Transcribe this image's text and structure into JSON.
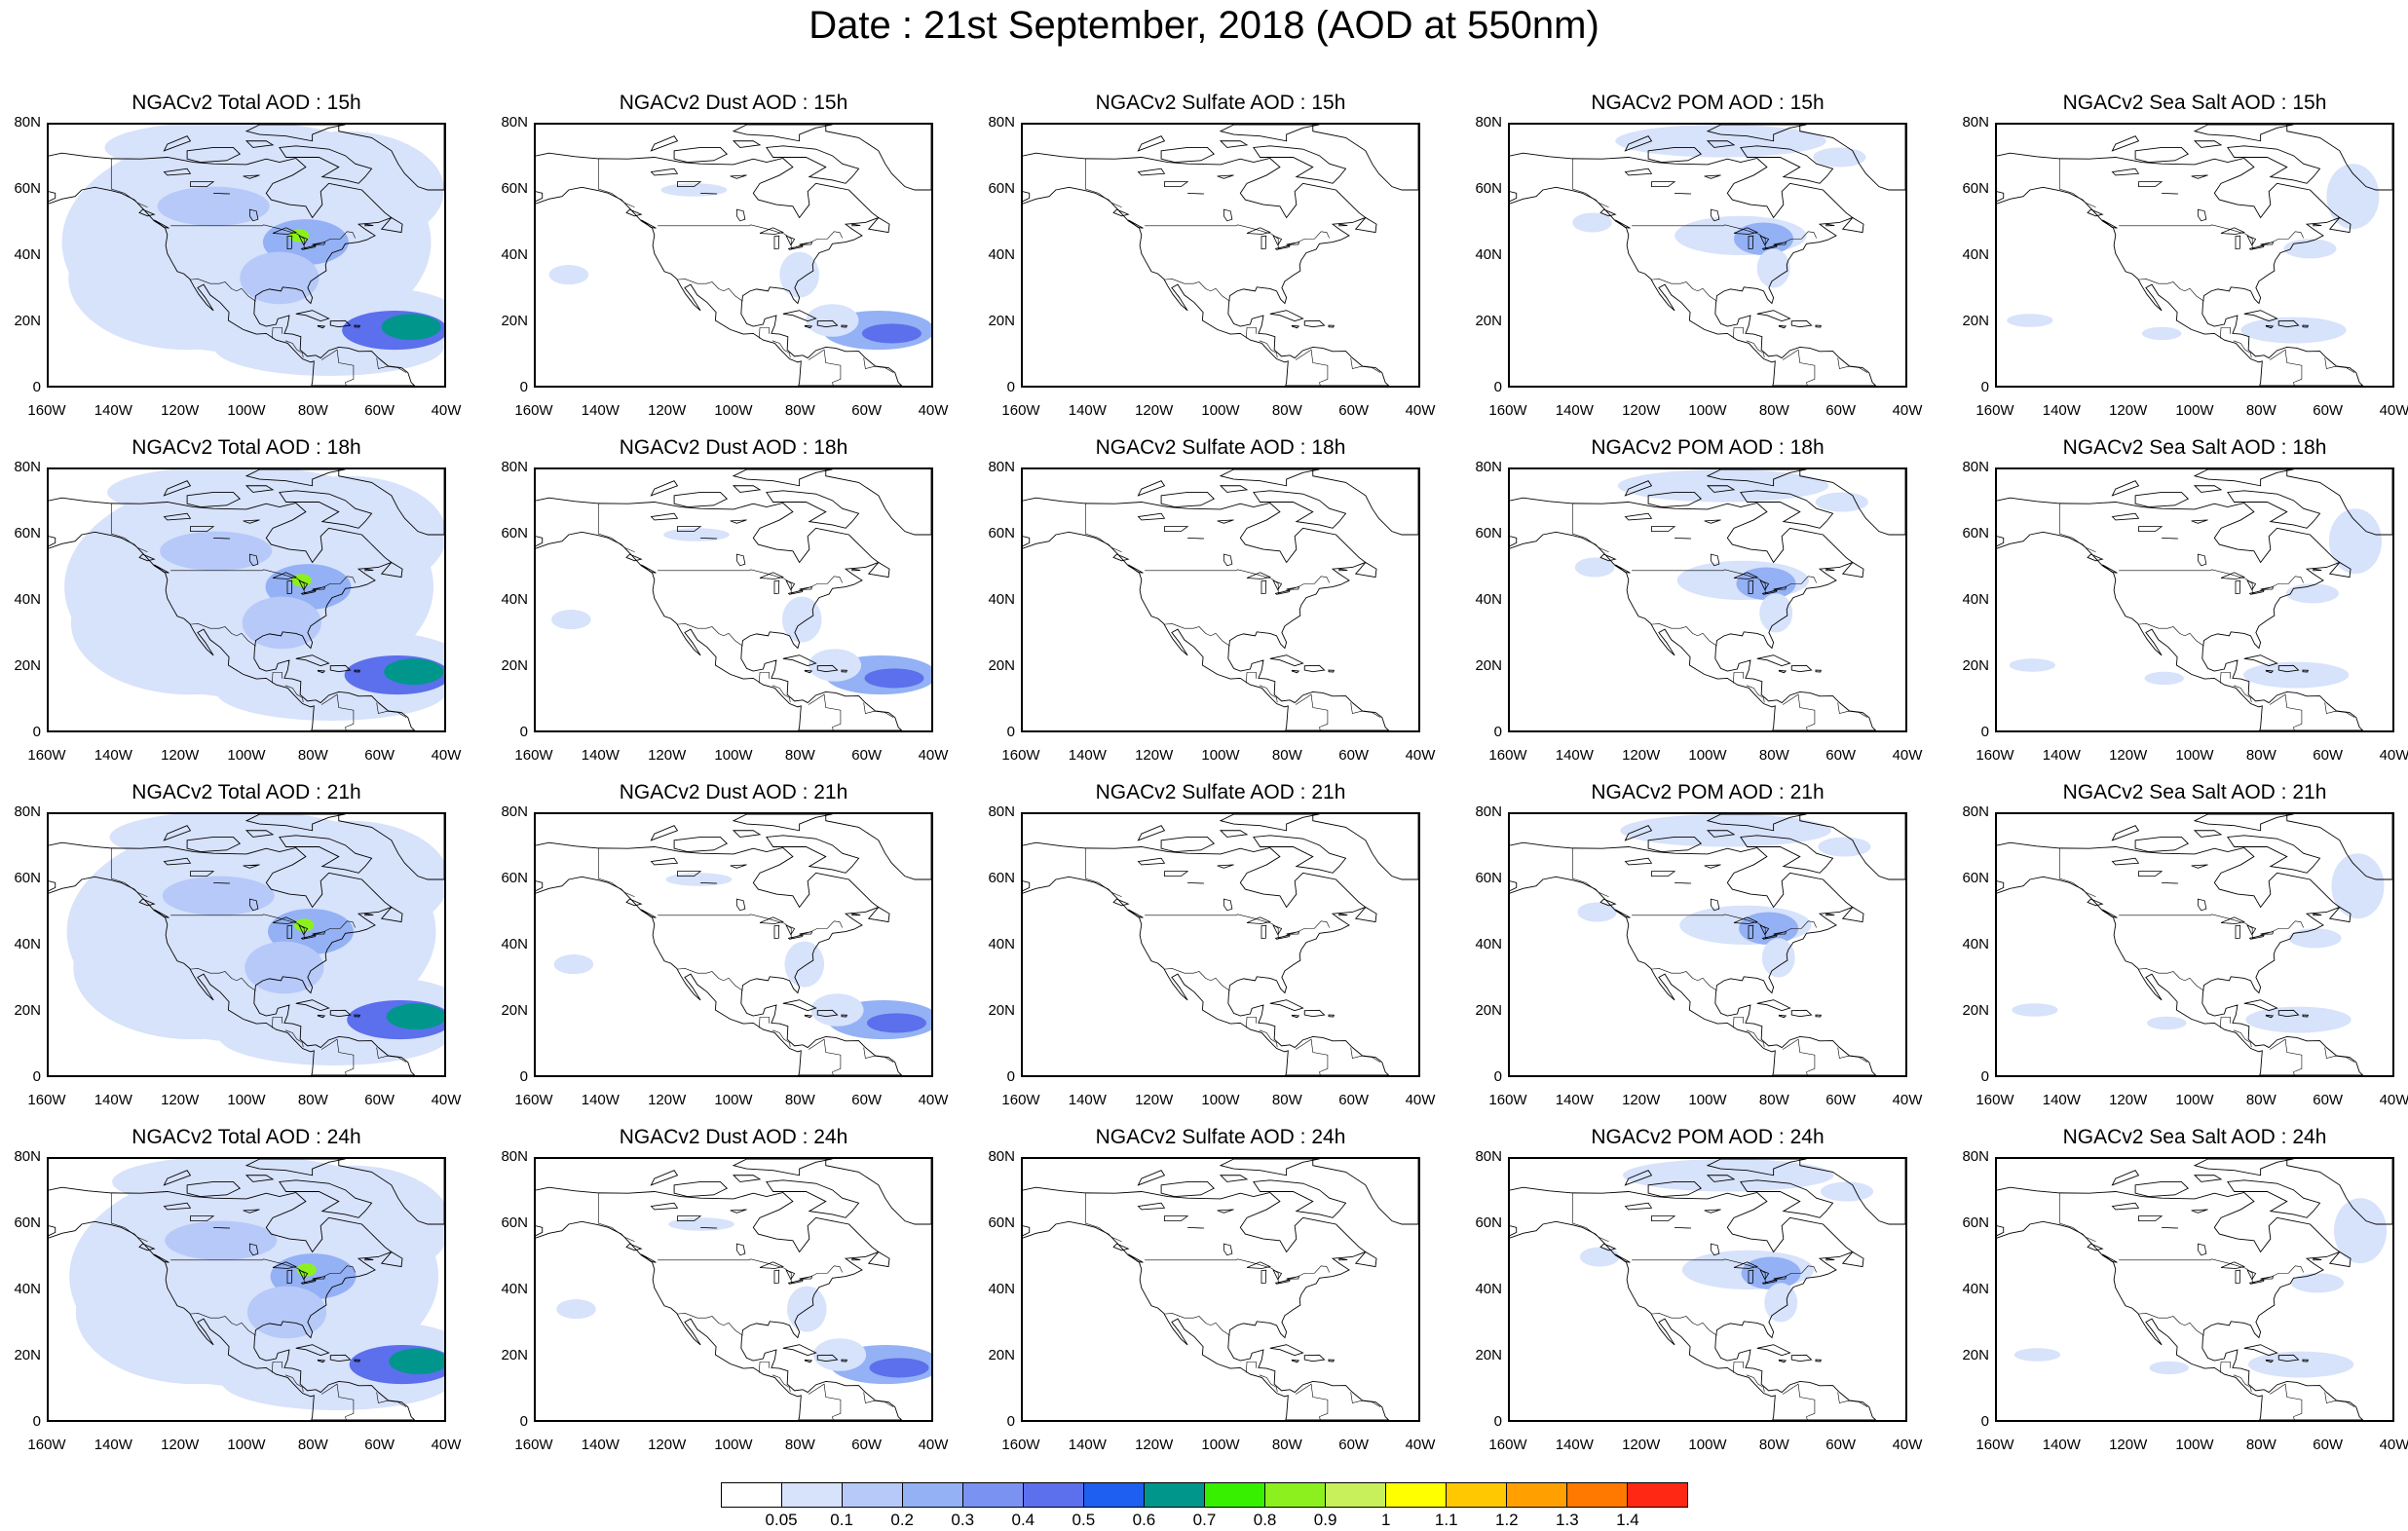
{
  "title": "Date : 21st September, 2018 (AOD at 550nm)",
  "panel_titles": [
    [
      "NGACv2 Total AOD : 15h",
      "NGACv2 Dust AOD : 15h",
      "NGACv2 Sulfate AOD : 15h",
      "NGACv2 POM AOD : 15h",
      "NGACv2 Sea Salt AOD : 15h"
    ],
    [
      "NGACv2 Total AOD : 18h",
      "NGACv2 Dust AOD : 18h",
      "NGACv2 Sulfate AOD : 18h",
      "NGACv2 POM AOD : 18h",
      "NGACv2 Sea Salt AOD : 18h"
    ],
    [
      "NGACv2 Total AOD : 21h",
      "NGACv2 Dust AOD : 21h",
      "NGACv2 Sulfate AOD : 21h",
      "NGACv2 POM AOD : 21h",
      "NGACv2 Sea Salt AOD : 21h"
    ],
    [
      "NGACv2 Total AOD : 24h",
      "NGACv2 Dust AOD : 24h",
      "NGACv2 Sulfate AOD : 24h",
      "NGACv2 POM AOD : 24h",
      "NGACv2 Sea Salt  AOD : 24h"
    ]
  ],
  "y_ticks": [
    "80N",
    "60N",
    "40N",
    "20N",
    "0"
  ],
  "x_ticks": [
    "160W",
    "140W",
    "120W",
    "100W",
    "80W",
    "60W",
    "40W"
  ],
  "colorbar": {
    "labels": [
      "0.05",
      "0.1",
      "0.2",
      "0.3",
      "0.4",
      "0.5",
      "0.6",
      "0.7",
      "0.8",
      "0.9",
      "1",
      "1.1",
      "1.2",
      "1.3",
      "1.4"
    ],
    "colors": [
      "#ffffff",
      "#d7e2fb",
      "#b6c9f8",
      "#94b1f5",
      "#7a92f1",
      "#5c6fec",
      "#1e5ef0",
      "#00968c",
      "#37f000",
      "#8cf01e",
      "#c8f05a",
      "#ffff00",
      "#ffc800",
      "#ffa000",
      "#ff7800",
      "#ff2814"
    ]
  },
  "chart_data": {
    "type": "heatmap",
    "domain": {
      "lon": [
        -160,
        -40
      ],
      "lat": [
        0,
        80
      ]
    },
    "variables": [
      "Total",
      "Dust",
      "Sulfate",
      "POM",
      "Sea Salt"
    ],
    "forecast_hours": [
      "15h",
      "18h",
      "21h",
      "24h"
    ],
    "units": "AOD at 550nm"
  }
}
